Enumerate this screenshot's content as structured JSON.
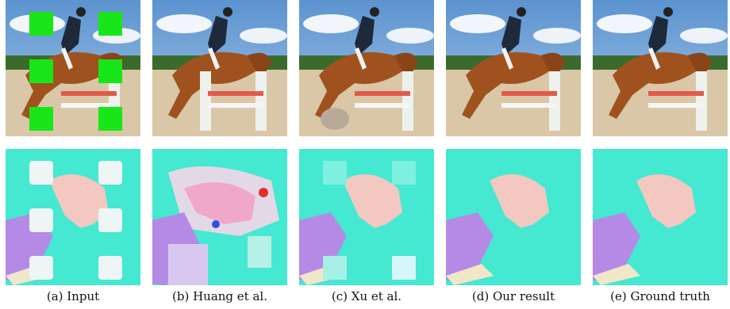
{
  "figure": {
    "panels": [
      {
        "id": "input",
        "caption": "(a) Input"
      },
      {
        "id": "huang",
        "caption": "(b) Huang et al."
      },
      {
        "id": "xu",
        "caption": "(c) Xu et al."
      },
      {
        "id": "ours",
        "caption": "(d) Our result"
      },
      {
        "id": "gt",
        "caption": "(e) Ground truth"
      }
    ]
  },
  "colors": {
    "sky": "#6fa3d8",
    "horse": "#a0521e",
    "sand": "#d9c7a8",
    "mask_green": "#19e619",
    "flow_bg": "#45e8d0",
    "flow_rider": "#f2c8c0",
    "flow_horse_leg": "#b48ae6"
  }
}
